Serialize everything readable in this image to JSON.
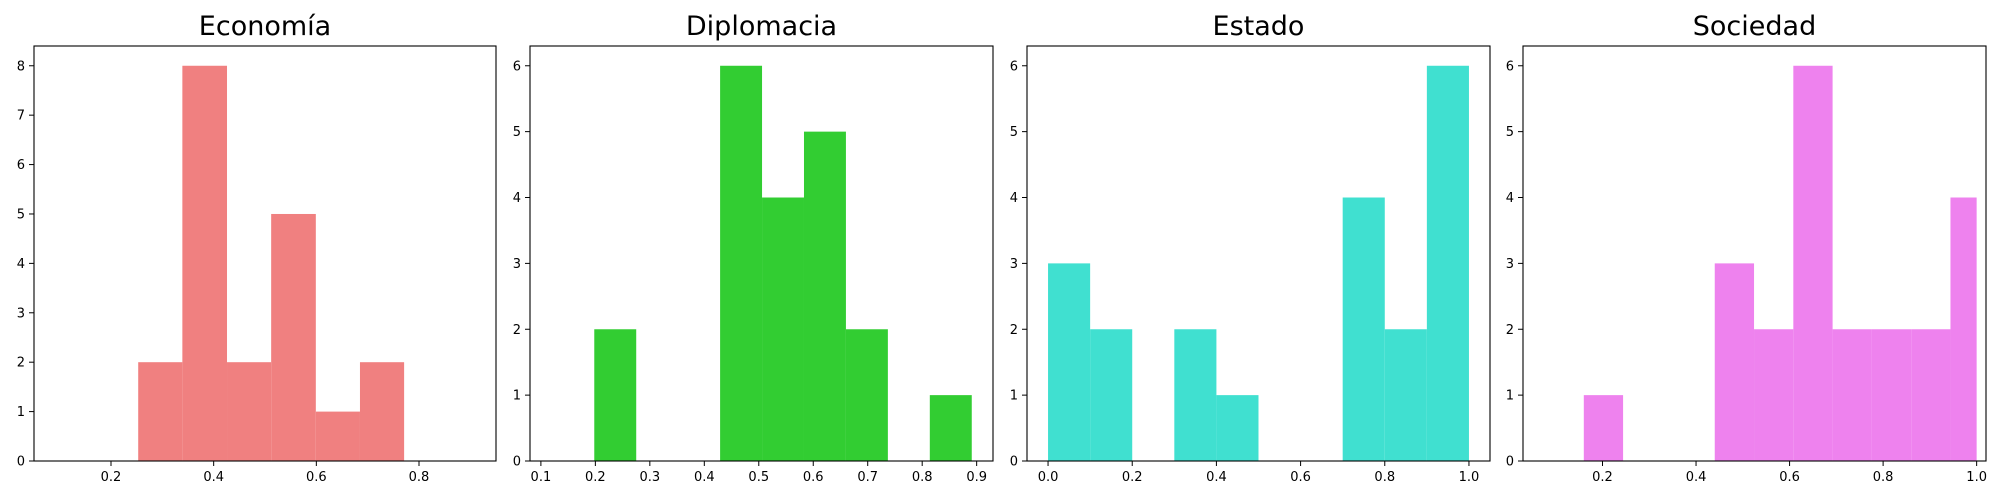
{
  "chart_data": [
    {
      "type": "bar",
      "title": "Economía",
      "color": "#f08080",
      "xlim": [
        0.05,
        0.95
      ],
      "ylim": [
        0,
        8.4
      ],
      "xticks": [
        0.2,
        0.4,
        0.6,
        0.8
      ],
      "yticks": [
        0,
        1,
        2,
        3,
        4,
        5,
        6,
        7,
        8
      ],
      "bins": [
        {
          "start": 0.253,
          "end": 0.339,
          "count": 2
        },
        {
          "start": 0.339,
          "end": 0.426,
          "count": 8
        },
        {
          "start": 0.426,
          "end": 0.512,
          "count": 2
        },
        {
          "start": 0.512,
          "end": 0.599,
          "count": 5
        },
        {
          "start": 0.599,
          "end": 0.685,
          "count": 1
        },
        {
          "start": 0.685,
          "end": 0.771,
          "count": 2
        }
      ]
    },
    {
      "type": "bar",
      "title": "Diplomacia",
      "color": "#32cd32",
      "xlim": [
        0.08,
        0.93
      ],
      "ylim": [
        0,
        6.3
      ],
      "xticks": [
        0.1,
        0.2,
        0.3,
        0.4,
        0.5,
        0.6,
        0.7,
        0.8,
        0.9
      ],
      "yticks": [
        0,
        1,
        2,
        3,
        4,
        5,
        6
      ],
      "bins": [
        {
          "start": 0.198,
          "end": 0.275,
          "count": 2
        },
        {
          "start": 0.429,
          "end": 0.506,
          "count": 6
        },
        {
          "start": 0.506,
          "end": 0.583,
          "count": 4
        },
        {
          "start": 0.583,
          "end": 0.66,
          "count": 5
        },
        {
          "start": 0.66,
          "end": 0.737,
          "count": 2
        },
        {
          "start": 0.814,
          "end": 0.891,
          "count": 1
        }
      ]
    },
    {
      "type": "bar",
      "title": "Estado",
      "color": "#40e0d0",
      "xlim": [
        -0.05,
        1.05
      ],
      "ylim": [
        0,
        6.3
      ],
      "xticks": [
        0.0,
        0.2,
        0.4,
        0.6,
        0.8,
        1.0
      ],
      "xtick_labels": [
        "0.0",
        "0.2",
        "0.4",
        "0.6",
        "0.8",
        "1.0"
      ],
      "yticks": [
        0,
        1,
        2,
        3,
        4,
        5,
        6
      ],
      "bins": [
        {
          "start": 0.0,
          "end": 0.1,
          "count": 3
        },
        {
          "start": 0.1,
          "end": 0.2,
          "count": 2
        },
        {
          "start": 0.3,
          "end": 0.4,
          "count": 2
        },
        {
          "start": 0.4,
          "end": 0.5,
          "count": 1
        },
        {
          "start": 0.7,
          "end": 0.8,
          "count": 4
        },
        {
          "start": 0.8,
          "end": 0.9,
          "count": 2
        },
        {
          "start": 0.9,
          "end": 1.0,
          "count": 6
        }
      ]
    },
    {
      "type": "bar",
      "title": "Sociedad",
      "color": "#ee82ee",
      "xlim": [
        0.03,
        1.02
      ],
      "ylim": [
        0,
        6.3
      ],
      "xticks": [
        0.2,
        0.4,
        0.6,
        0.8,
        1.0
      ],
      "xtick_labels": [
        "0.2",
        "0.4",
        "0.6",
        "0.8",
        "1.0"
      ],
      "yticks": [
        0,
        1,
        2,
        3,
        4,
        5,
        6
      ],
      "bins": [
        {
          "start": 0.16,
          "end": 0.244,
          "count": 1
        },
        {
          "start": 0.44,
          "end": 0.524,
          "count": 3
        },
        {
          "start": 0.524,
          "end": 0.608,
          "count": 2
        },
        {
          "start": 0.608,
          "end": 0.692,
          "count": 6
        },
        {
          "start": 0.692,
          "end": 0.776,
          "count": 2
        },
        {
          "start": 0.776,
          "end": 0.86,
          "count": 2
        },
        {
          "start": 0.86,
          "end": 0.944,
          "count": 2
        },
        {
          "start": 0.944,
          "end": 1.0,
          "count": 4
        }
      ]
    }
  ]
}
